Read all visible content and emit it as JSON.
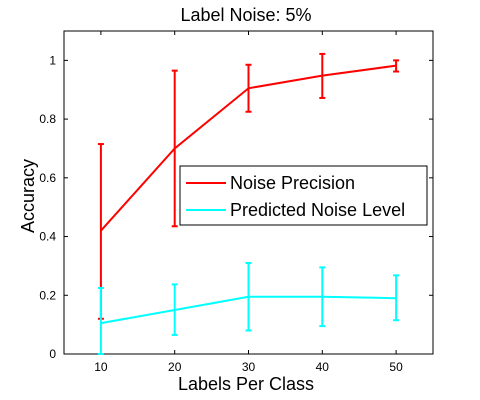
{
  "chart_data": {
    "type": "line",
    "title": "Label Noise: 5%",
    "xlabel": "Labels Per Class",
    "ylabel": "Accuracy",
    "xlim": [
      5,
      55
    ],
    "ylim": [
      0,
      1.1
    ],
    "xticks": [
      10,
      20,
      30,
      40,
      50
    ],
    "yticks": [
      0,
      0.2,
      0.4,
      0.6,
      0.8,
      1
    ],
    "ytick_labels": [
      "0",
      "0.2",
      "0.4",
      "0.6",
      "0.8",
      "1"
    ],
    "grid": false,
    "legend_position": "center-right",
    "x": [
      10,
      20,
      30,
      40,
      50
    ],
    "series": [
      {
        "name": "Noise Precision",
        "color": "#ff0000",
        "values": [
          0.42,
          0.7,
          0.905,
          0.948,
          0.982
        ],
        "err_low": [
          0.12,
          0.435,
          0.825,
          0.872,
          0.962
        ],
        "err_high": [
          0.715,
          0.965,
          0.985,
          1.022,
          1.0
        ]
      },
      {
        "name": "Predicted Noise Level",
        "color": "#00ffff",
        "values": [
          0.105,
          0.15,
          0.195,
          0.195,
          0.19
        ],
        "err_low": [
          0.0,
          0.065,
          0.08,
          0.095,
          0.115
        ],
        "err_high": [
          0.225,
          0.237,
          0.31,
          0.295,
          0.268
        ]
      }
    ]
  }
}
